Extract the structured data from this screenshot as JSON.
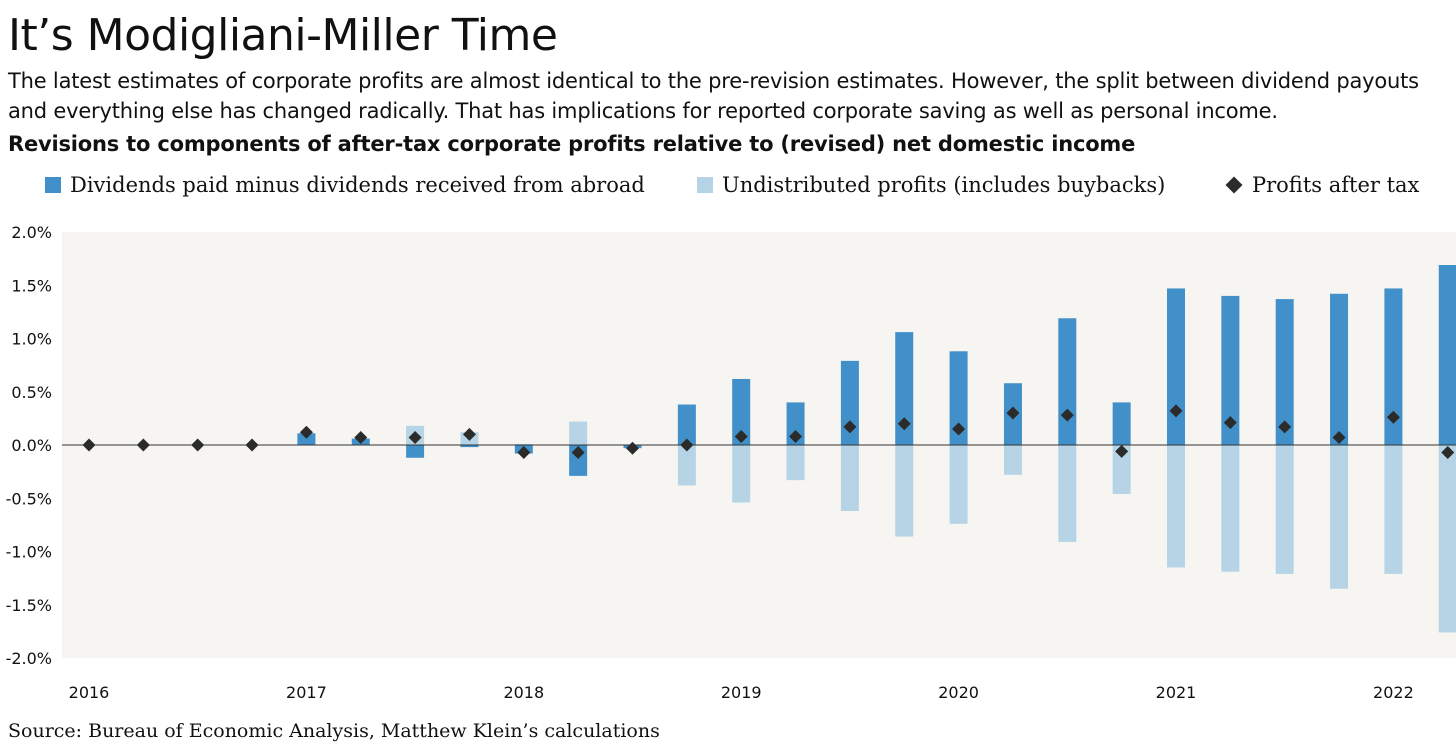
{
  "title": "It’s Modigliani-Miller Time",
  "subtitle": "The latest estimates of corporate profits are almost identical to the pre-revision estimates. However, the split between dividend payouts and everything else has changed radically. That has implications for reported corporate saving as well as personal income.",
  "source": "Source: Bureau of Economic Analysis, Matthew Klein’s calculations",
  "colors": {
    "dividends": "#4190c9",
    "undistributed": "#b6d4e6",
    "profits": "#2b2b2b",
    "plot_bg": "#f7f5f1"
  },
  "chart_data": {
    "type": "bar",
    "title": "Revisions to components of after-tax corporate profits relative to (revised) net domestic income",
    "legend_placement": "top",
    "grid": false,
    "ylim": [
      -2.0,
      2.0
    ],
    "y_ticks": [
      "2.0%",
      "1.5%",
      "1.0%",
      "0.5%",
      "0.0%",
      "-0.5%",
      "-1.0%",
      "-1.5%",
      "-2.0%"
    ],
    "x_tick_labels": [
      "2016",
      "2017",
      "2018",
      "2019",
      "2020",
      "2021",
      "2022"
    ],
    "categories": [
      "2016Q1",
      "2016Q2",
      "2016Q3",
      "2016Q4",
      "2017Q1",
      "2017Q2",
      "2017Q3",
      "2017Q4",
      "2018Q1",
      "2018Q2",
      "2018Q3",
      "2018Q4",
      "2019Q1",
      "2019Q2",
      "2019Q3",
      "2019Q4",
      "2020Q1",
      "2020Q2",
      "2020Q3",
      "2020Q4",
      "2021Q1",
      "2021Q2",
      "2021Q3",
      "2021Q4",
      "2022Q1",
      "2022Q2"
    ],
    "series": [
      {
        "name": "Dividends paid minus dividends received from abroad",
        "kind": "bar",
        "values": [
          0,
          0,
          0,
          0,
          0.11,
          0.06,
          -0.12,
          -0.02,
          -0.08,
          -0.29,
          -0.03,
          0.38,
          0.62,
          0.4,
          0.79,
          1.06,
          0.88,
          0.58,
          1.19,
          0.4,
          1.47,
          1.4,
          1.37,
          1.42,
          1.47,
          1.69
        ]
      },
      {
        "name": "Undistributed profits (includes buybacks)",
        "kind": "bar",
        "values": [
          0,
          0,
          0,
          0,
          0.01,
          0.01,
          0.18,
          0.12,
          0.01,
          0.22,
          0.0,
          -0.38,
          -0.54,
          -0.33,
          -0.62,
          -0.86,
          -0.74,
          -0.28,
          -0.91,
          -0.46,
          -1.15,
          -1.19,
          -1.21,
          -1.35,
          -1.21,
          -1.76
        ]
      },
      {
        "name": "Profits after tax",
        "kind": "scatter",
        "values": [
          0.0,
          0.0,
          0.0,
          0.0,
          0.12,
          0.07,
          0.07,
          0.1,
          -0.07,
          -0.07,
          -0.03,
          0.0,
          0.08,
          0.08,
          0.17,
          0.2,
          0.15,
          0.3,
          0.28,
          -0.06,
          0.32,
          0.21,
          0.17,
          0.07,
          0.26,
          -0.07
        ]
      }
    ]
  }
}
